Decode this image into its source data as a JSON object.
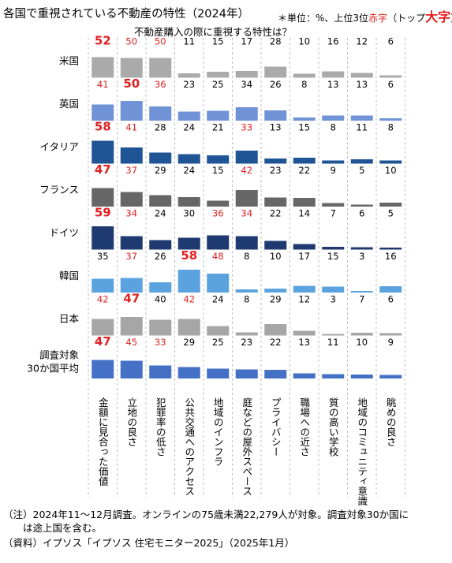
{
  "title": "各国で重視されている不動産の特性（2024年）",
  "note": {
    "prefix": "＊単位：%、上位3位",
    "red_label": "赤字",
    "mid": "（トップ",
    "big_label": "大字",
    "suffix": "）"
  },
  "subtitle": "不動産購入の際に重視する特性は？",
  "footer": [
    "（注）2024年11～12月調査。オンラインの75歳未満22,279人が対象。調査対象30か国に",
    "　　は途上国を含む。",
    "（資料）イプソス「イプソス 住宅モニター2025」（2025年1月）"
  ],
  "colors": {
    "top3": "#e02020",
    "米国": "#aaaaaa",
    "英国": "#6f93d6",
    "イタリア": "#1f5595",
    "フランス": "#666666",
    "ドイツ": "#1f3a70",
    "韓国": "#5ba3df",
    "日本": "#a6a6a6",
    "調査対象30か国平均": "#4470c5",
    "separator": "#bfbfbf"
  },
  "chart_data": {
    "type": "bar",
    "layout": "small-multiples grid",
    "categories": [
      "金額に見合った価値",
      "立地の良さ",
      "犯罪率の低さ",
      "公共交通へのアクセス",
      "地域のインフラ",
      "庭などの屋外スペース",
      "プライバシー",
      "職場への近さ",
      "質の高い学校",
      "地域のコミュニティ意識",
      "眺めの良さ"
    ],
    "series": [
      {
        "name": "米国",
        "values": [
          52,
          50,
          50,
          11,
          15,
          17,
          28,
          10,
          16,
          12,
          6
        ]
      },
      {
        "name": "英国",
        "values": [
          41,
          50,
          36,
          23,
          25,
          34,
          26,
          8,
          13,
          13,
          6
        ]
      },
      {
        "name": "イタリア",
        "values": [
          58,
          41,
          28,
          24,
          21,
          33,
          13,
          15,
          8,
          11,
          8
        ]
      },
      {
        "name": "フランス",
        "values": [
          47,
          37,
          29,
          24,
          15,
          42,
          23,
          22,
          9,
          5,
          10
        ]
      },
      {
        "name": "ドイツ",
        "values": [
          59,
          34,
          24,
          30,
          36,
          34,
          22,
          14,
          7,
          6,
          5
        ]
      },
      {
        "name": "韓国",
        "values": [
          35,
          37,
          26,
          58,
          48,
          8,
          10,
          17,
          15,
          3,
          16
        ]
      },
      {
        "name": "日本",
        "values": [
          42,
          47,
          40,
          42,
          24,
          8,
          29,
          12,
          3,
          7,
          6
        ]
      },
      {
        "name": "調査対象\n30か国平均",
        "values": [
          47,
          45,
          33,
          29,
          25,
          23,
          22,
          13,
          11,
          10,
          9
        ]
      }
    ],
    "ylim": [
      0,
      60
    ],
    "unit": "%"
  }
}
